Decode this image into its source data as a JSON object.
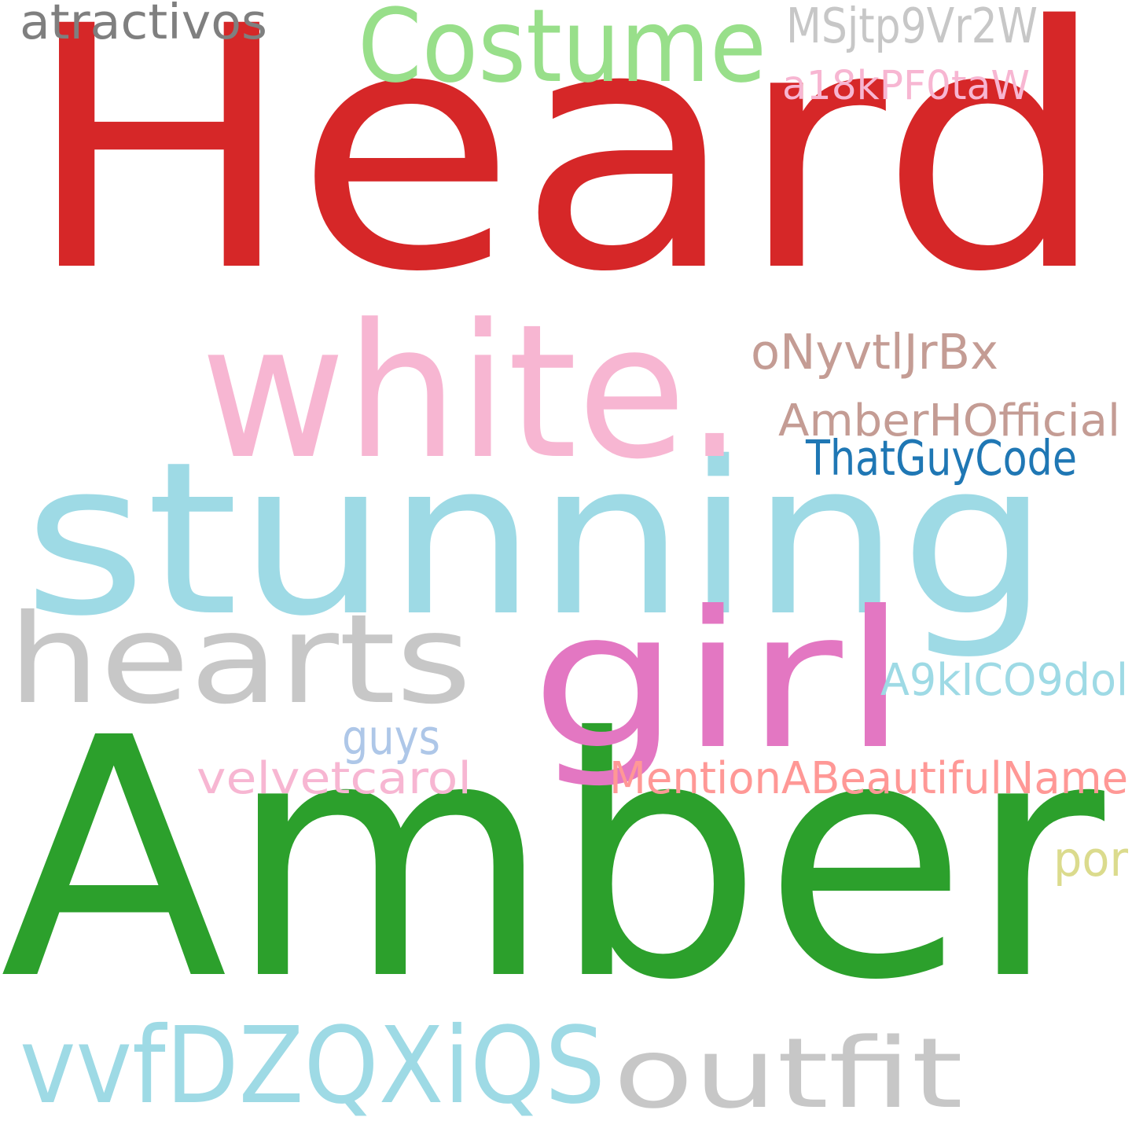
{
  "words": [
    {
      "id": "heard",
      "text": "Heard",
      "color": "#d62728"
    },
    {
      "id": "amber",
      "text": "Amber",
      "color": "#2ca02c"
    },
    {
      "id": "stunning",
      "text": "stunning",
      "color": "#9edae5"
    },
    {
      "id": "white",
      "text": "white.",
      "color": "#f7b6d2"
    },
    {
      "id": "hearts",
      "text": "hearts",
      "color": "#c7c7c7"
    },
    {
      "id": "girl",
      "text": "girl",
      "color": "#e377c2"
    },
    {
      "id": "costume",
      "text": "Costume",
      "color": "#98df8a"
    },
    {
      "id": "vvfdzqxiqs",
      "text": "vvfDZQXiQS",
      "color": "#9edae5"
    },
    {
      "id": "outfit",
      "text": "outfit",
      "color": "#c7c7c7"
    },
    {
      "id": "atractivos",
      "text": "atractivos",
      "color": "#7f7f7f"
    },
    {
      "id": "msjtp9vr2w",
      "text": "MSjtp9Vr2W",
      "color": "#c7c7c7"
    },
    {
      "id": "a18kpf0taw",
      "text": "a18kPF0taW",
      "color": "#f7b6d2"
    },
    {
      "id": "onyvtljrbx",
      "text": "oNyvtlJrBx",
      "color": "#c49c94"
    },
    {
      "id": "amberhofficial",
      "text": "AmberHOfficial",
      "color": "#c49c94"
    },
    {
      "id": "thatguycode",
      "text": "ThatGuyCode",
      "color": "#1f77b4"
    },
    {
      "id": "a9kico9dol",
      "text": "A9kICO9dol",
      "color": "#9edae5"
    },
    {
      "id": "guys",
      "text": "guys",
      "color": "#aec7e8"
    },
    {
      "id": "velvetcarol",
      "text": "velvetcarol",
      "color": "#f7b6d2"
    },
    {
      "id": "mentionabeautifulname",
      "text": "MentionABeautifulName",
      "color": "#ff9896"
    },
    {
      "id": "por",
      "text": "por",
      "color": "#dbdb8d"
    }
  ]
}
